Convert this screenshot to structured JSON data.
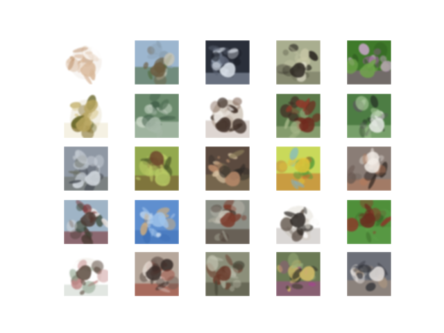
{
  "figure": {
    "rows": 5,
    "cols": 5,
    "background": "#ffffff",
    "samples": [
      {
        "id": "r1c1",
        "bg": "#f6f2ee",
        "colors": [
          "#d8b89a",
          "#b88a62",
          "#ffffff",
          "#e8d6c4"
        ],
        "style": "cutout"
      },
      {
        "id": "r1c2",
        "bg": "#9cb6cf",
        "colors": [
          "#6b5a3e",
          "#8aa0b2",
          "#4f6a3a",
          "#c8c4b4"
        ],
        "style": "sky"
      },
      {
        "id": "r1c3",
        "bg": "#2a2f3a",
        "colors": [
          "#dfe6ee",
          "#5a6272",
          "#9aa6b8",
          "#1c1f27"
        ],
        "style": "dark"
      },
      {
        "id": "r1c4",
        "bg": "#a9ae8f",
        "colors": [
          "#2a2620",
          "#c8c7a6",
          "#6e705a",
          "#d9d8c2"
        ],
        "style": "flat"
      },
      {
        "id": "r1c5",
        "bg": "#3f7a2a",
        "colors": [
          "#6fa44a",
          "#c7a6c8",
          "#9a5f9a",
          "#2e5a1f"
        ],
        "style": "green"
      },
      {
        "id": "r2c1",
        "bg": "#f3f0e6",
        "colors": [
          "#b7a55e",
          "#8c7a3c",
          "#d9c88e",
          "#6d6b2e"
        ],
        "style": "cutout"
      },
      {
        "id": "r2c2",
        "bg": "#6b8a6d",
        "colors": [
          "#a7b8a8",
          "#3c5a45",
          "#c9d6c6",
          "#4d6a52"
        ],
        "style": "flat"
      },
      {
        "id": "r2c3",
        "bg": "#d6cec4",
        "colors": [
          "#3b2c24",
          "#f2eee9",
          "#7a5c4c",
          "#b7a696"
        ],
        "style": "cutout"
      },
      {
        "id": "r2c4",
        "bg": "#5b7a4a",
        "colors": [
          "#6e2a1e",
          "#8f3a2a",
          "#a7b88a",
          "#3f2a22"
        ],
        "style": "green"
      },
      {
        "id": "r2c5",
        "bg": "#4d7d44",
        "colors": [
          "#e9ece6",
          "#2b3a28",
          "#9abd8a",
          "#5a5a5a"
        ],
        "style": "green"
      },
      {
        "id": "r3c1",
        "bg": "#8f98a4",
        "colors": [
          "#d7dde3",
          "#4a4f56",
          "#6c6f66",
          "#bfc6cc"
        ],
        "style": "sky"
      },
      {
        "id": "r3c2",
        "bg": "#93a94e",
        "colors": [
          "#b8c964",
          "#4d5a2a",
          "#6f4a2e",
          "#c7d66b"
        ],
        "style": "green"
      },
      {
        "id": "r3c3",
        "bg": "#5b4a3f",
        "colors": [
          "#b88a6a",
          "#2e2a26",
          "#8a7c5a",
          "#d6c0a0"
        ],
        "style": "dark"
      },
      {
        "id": "r3c4",
        "bg": "#c9d95a",
        "colors": [
          "#e2c43a",
          "#4f9a3a",
          "#c86a2e",
          "#6fb3e0"
        ],
        "style": "bright"
      },
      {
        "id": "r3c5",
        "bg": "#8a7d76",
        "colors": [
          "#f2ece6",
          "#2e2420",
          "#b77a5a",
          "#6a5a52"
        ],
        "style": "flat"
      },
      {
        "id": "r4c1",
        "bg": "#9fb4c6",
        "colors": [
          "#4a3a32",
          "#e9e6e4",
          "#7a2a2a",
          "#3d4a3a"
        ],
        "style": "sky"
      },
      {
        "id": "r4c2",
        "bg": "#5f8fcf",
        "colors": [
          "#9fc3ea",
          "#d6b07a",
          "#3d6fb6",
          "#c9dcf0"
        ],
        "style": "blue"
      },
      {
        "id": "r4c3",
        "bg": "#8c8f86",
        "colors": [
          "#7a3a2a",
          "#c7c3b6",
          "#4a3a30",
          "#a8a89a"
        ],
        "style": "flat"
      },
      {
        "id": "r4c4",
        "bg": "#f0eee9",
        "colors": [
          "#2b2622",
          "#d6cfc6",
          "#6a5f56",
          "#ffffff"
        ],
        "style": "cutout"
      },
      {
        "id": "r4c5",
        "bg": "#4f8f3a",
        "colors": [
          "#6a2a1e",
          "#8a3a2a",
          "#5fa04a",
          "#3a6a2a"
        ],
        "style": "green"
      },
      {
        "id": "r5c1",
        "bg": "#f6f4f0",
        "colors": [
          "#5a4a3e",
          "#c48a8a",
          "#8aa08a",
          "#ffffff"
        ],
        "style": "cutout"
      },
      {
        "id": "r5c2",
        "bg": "#b6a79b",
        "colors": [
          "#3a2e2a",
          "#e6ddd6",
          "#9a3a2a",
          "#6a5a52"
        ],
        "style": "flat"
      },
      {
        "id": "r5c3",
        "bg": "#8c8f7a",
        "colors": [
          "#6a3a2a",
          "#a8ab98",
          "#4a4a3a",
          "#c3c4b2"
        ],
        "style": "flat"
      },
      {
        "id": "r5c4",
        "bg": "#6b7a55",
        "colors": [
          "#d7c06a",
          "#3a3a2a",
          "#a14a8a",
          "#9bb07a"
        ],
        "style": "green"
      },
      {
        "id": "r5c5",
        "bg": "#6c6f78",
        "colors": [
          "#e6e2de",
          "#2f3036",
          "#a5927f",
          "#4a4d56"
        ],
        "style": "dark"
      }
    ]
  }
}
